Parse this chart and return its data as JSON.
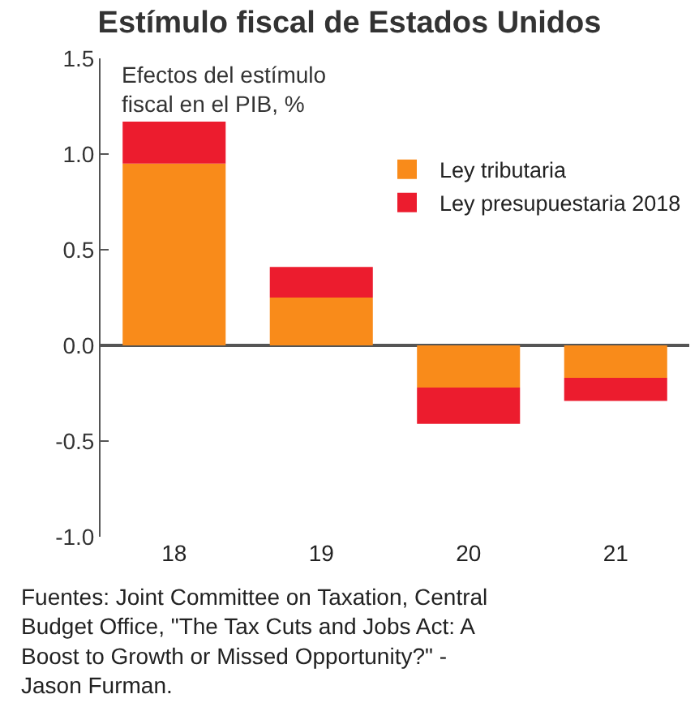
{
  "chart_data": {
    "type": "bar",
    "stacked": true,
    "title": "Estímulo fiscal de Estados Unidos",
    "ylabel": "Efectos del estímulo fiscal en el PIB, %",
    "categories": [
      "18",
      "19",
      "20",
      "21"
    ],
    "series": [
      {
        "name": "Ley tributaria",
        "color": "#f98b1a",
        "values": [
          0.95,
          0.25,
          -0.22,
          -0.17
        ]
      },
      {
        "name": "Ley presupuestaria 2018",
        "color": "#ec1c2e",
        "values": [
          0.22,
          0.16,
          -0.19,
          -0.12
        ]
      }
    ],
    "ylim": [
      -1.0,
      1.5
    ],
    "yticks": [
      {
        "value": -1.0,
        "label": "-1.0"
      },
      -0.5,
      {
        "value": 0.0,
        "label": "0.0"
      },
      0.5,
      {
        "value": 1.0,
        "label": "1.0"
      },
      1.5
    ],
    "legend": "top right",
    "annotations": [
      "Fuentes: Joint Committee on Taxation, Central Budget Office, \"The Tax Cuts and Jobs Act: A Boost to Growth or Missed Opportunity?\" - Jason Furman."
    ]
  }
}
